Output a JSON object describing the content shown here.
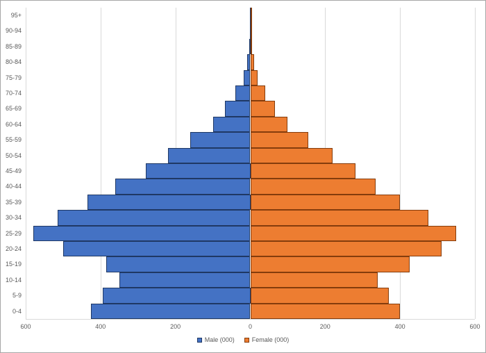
{
  "legend": {
    "male_label": "Male (000)",
    "female_label": "Female (000)"
  },
  "colors": {
    "male_fill": "#4472C4",
    "male_border": "#1F3864",
    "female_fill": "#ED7D31",
    "female_border": "#843C0C",
    "gridline": "#D9D9D9",
    "axis_line": "#BFBFBF",
    "text": "#595959",
    "chart_border": "#A6A6A6",
    "background": "#FFFFFF"
  },
  "chart_data": {
    "type": "bar",
    "subtype": "population-pyramid",
    "orientation": "horizontal",
    "category_order": "top-to-bottom",
    "categories": [
      "95+",
      "90-94",
      "85-89",
      "80-84",
      "75-79",
      "70-74",
      "65-69",
      "60-64",
      "55-59",
      "50-54",
      "45-49",
      "40-44",
      "35-39",
      "30-34",
      "25-29",
      "20-24",
      "15-19",
      "10-14",
      "5-9",
      "0-4"
    ],
    "series": [
      {
        "name": "Male (000)",
        "side": "left",
        "values": [
          0.5,
          1,
          2,
          9,
          18,
          40,
          68,
          100,
          160,
          220,
          280,
          360,
          435,
          515,
          580,
          500,
          385,
          350,
          395,
          425
        ]
      },
      {
        "name": "Female (000)",
        "side": "right",
        "values": [
          0.5,
          1.5,
          5,
          10,
          19,
          40,
          66,
          100,
          155,
          220,
          280,
          335,
          400,
          475,
          550,
          510,
          425,
          340,
          370,
          400
        ]
      }
    ],
    "x_ticks": {
      "values": [
        -600,
        -400,
        -200,
        0,
        200,
        400,
        600
      ],
      "labels": [
        "600",
        "400",
        "200",
        "0",
        "200",
        "400",
        "600"
      ]
    },
    "xlim": [
      -600,
      600
    ],
    "grid": "vertical-only",
    "legend_position": "bottom-center",
    "title": "",
    "xlabel": "",
    "ylabel": ""
  }
}
